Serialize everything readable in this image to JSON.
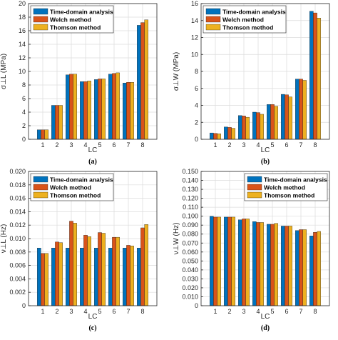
{
  "chart_data": [
    {
      "type": "bar",
      "panel_label": "(a)",
      "categories": [
        "1",
        "2",
        "3",
        "4",
        "5",
        "6",
        "7",
        "8"
      ],
      "xlabel": "LC",
      "ylabel": "σ⊥L (MPa)",
      "ylim": [
        0,
        20
      ],
      "yticks": [
        "0",
        "2",
        "4",
        "6",
        "8",
        "10",
        "12",
        "14",
        "16",
        "18",
        "20"
      ],
      "grid": true,
      "legend_position": "top-left",
      "series": [
        {
          "name": "Time-domain analysis",
          "color": "#0072bd",
          "values": [
            1.4,
            5.0,
            9.5,
            8.5,
            8.8,
            9.6,
            8.3,
            16.8
          ]
        },
        {
          "name": "Welch method",
          "color": "#d95319",
          "values": [
            1.4,
            5.0,
            9.6,
            8.5,
            8.9,
            9.7,
            8.4,
            17.2
          ]
        },
        {
          "name": "Thomson method",
          "color": "#edb120",
          "values": [
            1.4,
            5.0,
            9.6,
            8.6,
            8.9,
            9.8,
            8.4,
            17.6
          ]
        }
      ]
    },
    {
      "type": "bar",
      "panel_label": "(b)",
      "categories": [
        "1",
        "2",
        "3",
        "4",
        "5",
        "6",
        "7",
        "8"
      ],
      "xlabel": "LC",
      "ylabel": "σ⊥W (MPa)",
      "ylim": [
        0,
        16
      ],
      "yticks": [
        "0",
        "2",
        "4",
        "6",
        "8",
        "10",
        "12",
        "14",
        "16"
      ],
      "grid": true,
      "legend_position": "top-left",
      "series": [
        {
          "name": "Time-domain analysis",
          "color": "#0072bd",
          "values": [
            0.75,
            1.45,
            2.8,
            3.2,
            4.1,
            5.3,
            7.1,
            15.1
          ]
        },
        {
          "name": "Welch method",
          "color": "#d95319",
          "values": [
            0.7,
            1.4,
            2.75,
            3.15,
            4.1,
            5.25,
            7.1,
            14.9
          ]
        },
        {
          "name": "Thomson method",
          "color": "#edb120",
          "values": [
            0.65,
            1.3,
            2.6,
            2.95,
            3.9,
            5.0,
            6.95,
            14.3
          ]
        }
      ]
    },
    {
      "type": "bar",
      "panel_label": "(c)",
      "categories": [
        "1",
        "2",
        "3",
        "4",
        "5",
        "6",
        "7",
        "8"
      ],
      "xlabel": "LC",
      "ylabel": "ν⊥L (Hz)",
      "ylim": [
        0,
        0.02
      ],
      "yticks": [
        "0",
        "0.002",
        "0.004",
        "0.006",
        "0.008",
        "0.010",
        "0.012",
        "0.014",
        "0.016",
        "0.018",
        "0.020"
      ],
      "grid": true,
      "legend_position": "top-left",
      "series": [
        {
          "name": "Time-domain analysis",
          "color": "#0072bd",
          "values": [
            0.0086,
            0.0086,
            0.0086,
            0.0086,
            0.0086,
            0.0086,
            0.0086,
            0.0086
          ]
        },
        {
          "name": "Welch method",
          "color": "#d95319",
          "values": [
            0.0078,
            0.0095,
            0.0126,
            0.0105,
            0.0109,
            0.0102,
            0.009,
            0.0116
          ]
        },
        {
          "name": "Thomson method",
          "color": "#edb120",
          "values": [
            0.0078,
            0.0094,
            0.0123,
            0.0103,
            0.0108,
            0.0102,
            0.0089,
            0.0121
          ]
        }
      ]
    },
    {
      "type": "bar",
      "panel_label": "(d)",
      "categories": [
        "1",
        "2",
        "3",
        "4",
        "5",
        "6",
        "7",
        "8"
      ],
      "xlabel": "LC",
      "ylabel": "ν⊥W (Hz)",
      "ylim": [
        0,
        0.15
      ],
      "yticks": [
        "0",
        "0.010",
        "0.020",
        "0.030",
        "0.040",
        "0.050",
        "0.060",
        "0.070",
        "0.080",
        "0.090",
        "0.100",
        "0.110",
        "0.120",
        "0.130",
        "0.140",
        "0.150"
      ],
      "grid": true,
      "legend_position": "top-right",
      "series": [
        {
          "name": "Time-domain analysis",
          "color": "#0072bd",
          "values": [
            0.1,
            0.099,
            0.096,
            0.094,
            0.091,
            0.089,
            0.084,
            0.078
          ]
        },
        {
          "name": "Welch method",
          "color": "#d95319",
          "values": [
            0.099,
            0.099,
            0.097,
            0.093,
            0.091,
            0.089,
            0.085,
            0.082
          ]
        },
        {
          "name": "Thomson method",
          "color": "#edb120",
          "values": [
            0.099,
            0.099,
            0.097,
            0.093,
            0.092,
            0.089,
            0.085,
            0.083
          ]
        }
      ]
    }
  ]
}
